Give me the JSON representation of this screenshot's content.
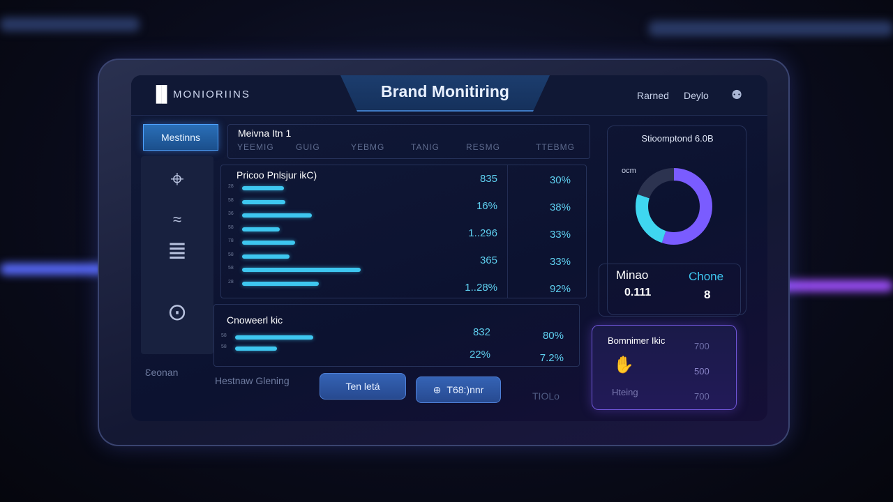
{
  "header": {
    "logo_icon": "monitor-logo-icon",
    "brand": "MONIORIINS",
    "title": "Brand Monitiring",
    "links": [
      "Rarned",
      "Deylo"
    ],
    "bulb_icon": "lightbulb-icon"
  },
  "sidebar": {
    "active_label": "Mestinns",
    "icons": [
      "location-pin-icon",
      "signal-wave-icon",
      "stack-wave-icon",
      "location-pin-icon"
    ],
    "footer_label": "Ɛeonan"
  },
  "tabs_panel": {
    "title": "Meivna Itn 1",
    "tabs": [
      "YEEMIG",
      "GUIG",
      "YEBMG",
      "TANIG",
      "RESMG",
      "TTEBMG"
    ]
  },
  "chart_main": {
    "title": "Pricoo Pnlsjur ikC)",
    "row_labels": [
      "28",
      "58",
      "36",
      "58",
      "78",
      "58",
      "58",
      "28"
    ],
    "bar_fractions": [
      0.3,
      0.31,
      0.5,
      0.27,
      0.38,
      0.34,
      0.85,
      0.55
    ],
    "values": [
      "835",
      "16%",
      "1..296",
      "365",
      "1..28%"
    ],
    "percents": [
      "30%",
      "38%",
      "33%",
      "33%",
      "92%"
    ]
  },
  "chart_second": {
    "title": "Cnoweerl kic",
    "row_labels": [
      "58",
      "58"
    ],
    "bar_fractions": [
      0.5,
      0.27
    ],
    "values": [
      "832",
      "22%"
    ],
    "percents": [
      "80%",
      "7.2%"
    ]
  },
  "footer": {
    "label": "Hestnaw Glening",
    "button1": "Ten letá",
    "button2": "T68:)nnr",
    "button2_icon": "globe-icon",
    "tail": "TIOLo"
  },
  "donut": {
    "title": "Stioomptond 6.0B",
    "label": "ocm",
    "segments": [
      {
        "name": "purple",
        "fraction": 0.55,
        "color": "#7a5cff"
      },
      {
        "name": "cyan",
        "fraction": 0.25,
        "color": "#3fd6f0"
      },
      {
        "name": "gray",
        "fraction": 0.2,
        "color": "#2c3350"
      }
    ]
  },
  "stats": {
    "left_label": "Minao",
    "left_value": "0.111",
    "right_label": "Chone",
    "right_value": "8"
  },
  "card": {
    "title": "Bomnimer Ikic",
    "icon": "hand-icon",
    "footer": "Hteing",
    "values": [
      "700",
      "500",
      "700"
    ]
  },
  "colors": {
    "accent": "#3ec7f0",
    "purple": "#7a5cff"
  }
}
